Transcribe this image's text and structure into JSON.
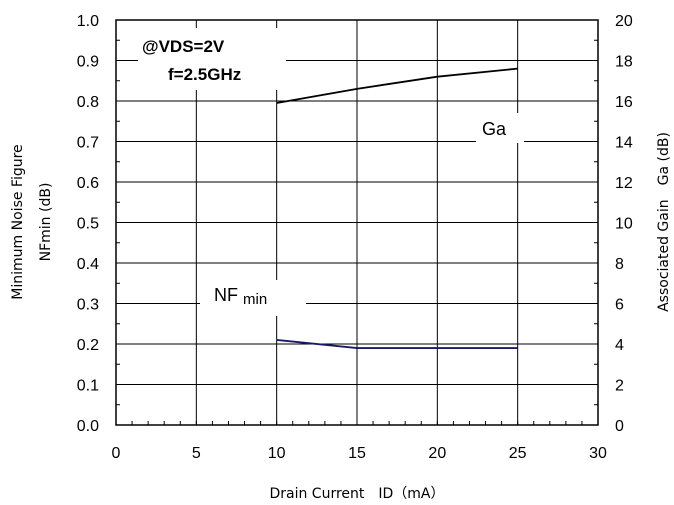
{
  "chart_data": {
    "type": "line",
    "x_ticks": [
      "0",
      "5",
      "10",
      "15",
      "20",
      "25",
      "30"
    ],
    "y_left_ticks": [
      "0.0",
      "0.1",
      "0.2",
      "0.3",
      "0.4",
      "0.5",
      "0.6",
      "0.7",
      "0.8",
      "0.9",
      "1.0"
    ],
    "y_right_ticks": [
      "0",
      "2",
      "4",
      "6",
      "8",
      "10",
      "12",
      "14",
      "16",
      "18",
      "20"
    ],
    "xlim": [
      0,
      30
    ],
    "ylim_left": [
      0,
      1.0
    ],
    "ylim_right": [
      0,
      20
    ],
    "xlabel": "Drain Current　ID（mA）",
    "ylabel_left_line1": "Minimum Noise Figure",
    "ylabel_left_line2": "NFmin (dB)",
    "ylabel_right": "Associated Gain　Ga (dB)",
    "annotation_line1": "@VDS=2V",
    "annotation_line2": "f=2.5GHz",
    "grid": true,
    "series": [
      {
        "name": "Ga",
        "axis": "right",
        "color": "#000000",
        "x": [
          10,
          15,
          20,
          25
        ],
        "values": [
          15.9,
          16.6,
          17.2,
          17.6
        ]
      },
      {
        "name": "NFmin",
        "axis": "left",
        "color": "#1a1a66",
        "x": [
          10,
          15,
          20,
          25
        ],
        "values": [
          0.21,
          0.19,
          0.19,
          0.19
        ]
      }
    ]
  }
}
